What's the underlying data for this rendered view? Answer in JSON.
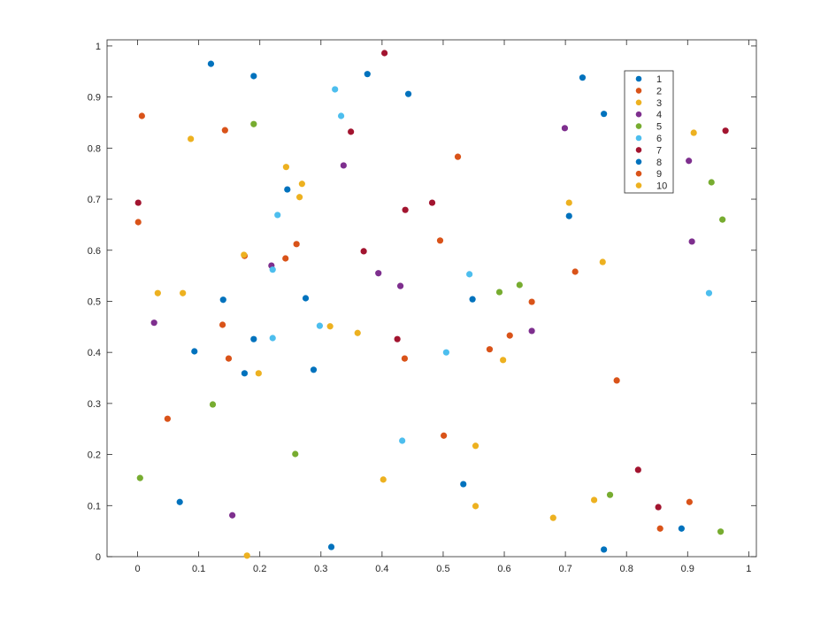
{
  "chart_data": {
    "type": "scatter",
    "title": "",
    "xlabel": "",
    "ylabel": "",
    "xlim": [
      -0.05,
      1.0125
    ],
    "ylim": [
      0,
      1.012
    ],
    "xticks": [
      "0",
      "0.1",
      "0.2",
      "0.3",
      "0.4",
      "0.5",
      "0.6",
      "0.7",
      "0.8",
      "0.9",
      "1"
    ],
    "yticks": [
      "0",
      "0.1",
      "0.2",
      "0.3",
      "0.4",
      "0.5",
      "0.6",
      "0.7",
      "0.8",
      "0.9",
      "1"
    ],
    "grid": false,
    "legend_placement": "top-right",
    "series": [
      {
        "name": "1",
        "color": "#0072BD",
        "points": [
          [
            0.12,
            0.965
          ],
          [
            0.19,
            0.941
          ],
          [
            0.376,
            0.945
          ],
          [
            0.443,
            0.906
          ],
          [
            0.728,
            0.938
          ],
          [
            0.763,
            0.867
          ],
          [
            0.245,
            0.719
          ],
          [
            0.706,
            0.667
          ],
          [
            0.14,
            0.503
          ],
          [
            0.275,
            0.506
          ]
        ]
      },
      {
        "name": "2",
        "color": "#D95319",
        "points": [
          [
            0.007,
            0.863
          ],
          [
            0.143,
            0.835
          ],
          [
            0.524,
            0.783
          ],
          [
            0.001,
            0.655
          ],
          [
            0.26,
            0.612
          ],
          [
            0.242,
            0.584
          ],
          [
            0.175,
            0.589
          ],
          [
            0.495,
            0.619
          ],
          [
            0.139,
            0.454
          ],
          [
            0.149,
            0.388
          ]
        ]
      },
      {
        "name": "3",
        "color": "#EDB120",
        "points": [
          [
            0.087,
            0.818
          ],
          [
            0.243,
            0.763
          ],
          [
            0.269,
            0.73
          ],
          [
            0.265,
            0.704
          ],
          [
            0.91,
            0.83
          ],
          [
            0.706,
            0.693
          ],
          [
            0.761,
            0.577
          ],
          [
            0.033,
            0.516
          ],
          [
            0.074,
            0.516
          ],
          [
            0.174,
            0.591
          ]
        ]
      },
      {
        "name": "4",
        "color": "#7E2F8E",
        "points": [
          [
            0.699,
            0.839
          ],
          [
            0.337,
            0.766
          ],
          [
            0.902,
            0.775
          ],
          [
            0.907,
            0.617
          ],
          [
            0.219,
            0.57
          ],
          [
            0.394,
            0.555
          ],
          [
            0.43,
            0.53
          ],
          [
            0.027,
            0.458
          ],
          [
            0.645,
            0.442
          ],
          [
            0.155,
            0.081
          ]
        ]
      },
      {
        "name": "5",
        "color": "#77AC30",
        "points": [
          [
            0.19,
            0.847
          ],
          [
            0.939,
            0.733
          ],
          [
            0.957,
            0.66
          ],
          [
            0.592,
            0.518
          ],
          [
            0.625,
            0.532
          ],
          [
            0.123,
            0.298
          ],
          [
            0.258,
            0.201
          ],
          [
            0.004,
            0.154
          ],
          [
            0.773,
            0.121
          ],
          [
            0.954,
            0.049
          ]
        ]
      },
      {
        "name": "6",
        "color": "#4DBEEE",
        "points": [
          [
            0.323,
            0.915
          ],
          [
            0.333,
            0.863
          ],
          [
            0.229,
            0.669
          ],
          [
            0.221,
            0.562
          ],
          [
            0.221,
            0.428
          ],
          [
            0.298,
            0.452
          ],
          [
            0.543,
            0.553
          ],
          [
            0.505,
            0.4
          ],
          [
            0.433,
            0.227
          ],
          [
            0.935,
            0.516
          ]
        ]
      },
      {
        "name": "7",
        "color": "#A2142F",
        "points": [
          [
            0.404,
            0.986
          ],
          [
            0.349,
            0.832
          ],
          [
            0.438,
            0.679
          ],
          [
            0.482,
            0.693
          ],
          [
            0.37,
            0.598
          ],
          [
            0.425,
            0.426
          ],
          [
            0.962,
            0.834
          ],
          [
            0.819,
            0.17
          ],
          [
            0.852,
            0.097
          ],
          [
            0.001,
            0.693
          ]
        ]
      },
      {
        "name": "8",
        "color": "#0072BD",
        "points": [
          [
            0.548,
            0.504
          ],
          [
            0.19,
            0.426
          ],
          [
            0.093,
            0.402
          ],
          [
            0.175,
            0.359
          ],
          [
            0.288,
            0.366
          ],
          [
            0.069,
            0.107
          ],
          [
            0.533,
            0.142
          ],
          [
            0.317,
            0.019
          ],
          [
            0.89,
            0.055
          ],
          [
            0.763,
            0.014
          ]
        ]
      },
      {
        "name": "9",
        "color": "#D95319",
        "points": [
          [
            0.049,
            0.27
          ],
          [
            0.437,
            0.388
          ],
          [
            0.501,
            0.237
          ],
          [
            0.576,
            0.406
          ],
          [
            0.609,
            0.433
          ],
          [
            0.645,
            0.499
          ],
          [
            0.716,
            0.558
          ],
          [
            0.784,
            0.345
          ],
          [
            0.855,
            0.055
          ],
          [
            0.903,
            0.107
          ]
        ]
      },
      {
        "name": "10",
        "color": "#EDB120",
        "points": [
          [
            0.315,
            0.451
          ],
          [
            0.36,
            0.438
          ],
          [
            0.198,
            0.359
          ],
          [
            0.598,
            0.385
          ],
          [
            0.553,
            0.217
          ],
          [
            0.553,
            0.099
          ],
          [
            0.402,
            0.151
          ],
          [
            0.68,
            0.076
          ],
          [
            0.747,
            0.111
          ],
          [
            0.179,
            0.002
          ]
        ]
      }
    ]
  }
}
